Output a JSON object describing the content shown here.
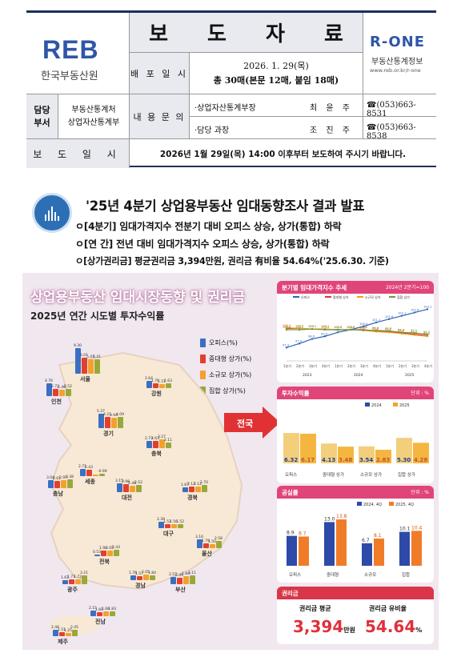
{
  "header": {
    "logo_left_mark": "REB",
    "logo_left_name": "한국부동산원",
    "title": "보 도 자 료",
    "logo_right_mark": "R-ONE",
    "logo_right_name": "부동산통계정보",
    "logo_right_url": "www.reb.or.kr/r-one",
    "distribution_label": "배 포 일 시",
    "distribution_date": "2026. 1. 29(목)",
    "distribution_pages": "총 30매(본문 12매, 붙임 18매)",
    "dept_label_1": "담당",
    "dept_label_2": "부서",
    "dept_1": "부동산통계처",
    "dept_2": "상업자산통계부",
    "contact_label": "내 용 문 의",
    "contacts": [
      {
        "role": "·상업자산통계부장",
        "name": "최 윤 주",
        "phone": "☎(053)663-8531"
      },
      {
        "role": "·담당 과장",
        "name": "조 진 주",
        "phone": "☎(053)663-8538"
      }
    ],
    "release_label": "보 도 일 시",
    "release_text": "2026년 1월 29일(목) 14:00 이후부터 보도하여 주시기 바랍니다."
  },
  "headline": {
    "title": "'25년 4분기 상업용부동산 임대동향조사 결과 발표",
    "bullets": [
      "ㅇ[4분기] 임대가격지수 전분기 대비 오피스 상승, 상가(통합) 하락",
      "ㅇ[연 간] 전년 대비 임대가격지수 오피스 상승, 상가(통합) 하락",
      "ㅇ[상가권리금] 평균권리금 3,394만원, 권리금 有비율 54.64%('25.6.30. 기준)"
    ]
  },
  "infographic": {
    "title": "상업용부동산 임대시장동향 및 권리금",
    "subtitle": "2025년 연간 시도별 투자수익률",
    "legend": [
      "오피스(%)",
      "중대형 상가(%)",
      "소규모 상가(%)",
      "집합 상가(%)"
    ],
    "colors": {
      "office": "#3a6fc2",
      "mid": "#e1402f",
      "small": "#f2a12e",
      "agg": "#9aa83a",
      "accent": "#e0457a"
    },
    "national_label": "전국",
    "regions": [
      {
        "name": "인천",
        "values": [
          "4.76",
          "2.72",
          "2.46",
          "2.52"
        ]
      },
      {
        "name": "서울",
        "values": [
          "9.30",
          "6.01",
          "5.43",
          "5.41"
        ]
      },
      {
        "name": "강원",
        "values": [
          "2.64",
          "1.76",
          "1.51",
          "1.63"
        ]
      },
      {
        "name": "경기",
        "values": [
          "5.37",
          "4.21",
          "3.94",
          "4.09"
        ]
      },
      {
        "name": "충북",
        "values": [
          "2.73",
          "2.63",
          "3.27",
          "2.11"
        ]
      },
      {
        "name": "세종",
        "values": [
          "2.71",
          "2.43",
          "",
          "-0.99"
        ]
      },
      {
        "name": "충남",
        "values": [
          "3.04",
          "2.61",
          "2.95",
          "3.38"
        ]
      },
      {
        "name": "대전",
        "values": [
          "3.15",
          "2.98",
          "2.48",
          "2.52"
        ]
      },
      {
        "name": "경북",
        "values": [
          "1.87",
          "2.12",
          "2.12",
          "2.70"
        ]
      },
      {
        "name": "대구",
        "values": [
          "2.39",
          "1.51",
          "1.56",
          "1.52"
        ]
      },
      {
        "name": "전북",
        "values": [
          "0.53",
          "1.96",
          "2.05",
          "2.43"
        ]
      },
      {
        "name": "울산",
        "values": [
          "3.16",
          "1.79",
          "1.50",
          "2.58"
        ]
      },
      {
        "name": "광주",
        "values": [
          "1.61",
          "1.77",
          "1.72",
          "3.21"
        ]
      },
      {
        "name": "경남",
        "values": [
          "1.78",
          "1.57",
          "2.05",
          "1.84"
        ]
      },
      {
        "name": "부산",
        "values": [
          "2.57",
          "2.49",
          "2.84",
          "3.11"
        ]
      },
      {
        "name": "전남",
        "values": [
          "2.15",
          "1.60",
          "1.68",
          "1.83"
        ]
      },
      {
        "name": "제주",
        "values": [
          "2.46",
          "1.51",
          "1.25",
          "2.45"
        ]
      }
    ],
    "rent_index": {
      "title": "분기별 임대가격지수 추세",
      "unit": "2024년 2분기=100",
      "series_names": [
        "오피스",
        "중대형 상가",
        "소규모 상가",
        "집합 상가"
      ],
      "x_labels": [
        "1분기",
        "2분기",
        "3분기",
        "4분기",
        "1분기",
        "2분기",
        "3분기",
        "4분기",
        "1분기",
        "2분기",
        "3분기",
        "4분기"
      ],
      "years": [
        "2023",
        "2024",
        "2025"
      ],
      "office": [
        97.3,
        97.9,
        98.6,
        99.0,
        99.6,
        100.0,
        100.5,
        101.1,
        101.6,
        102.1,
        102.6,
        103.1
      ],
      "mid": [
        100.2,
        100.2,
        100.1,
        100.1,
        100.0,
        100.0,
        100.0,
        99.8,
        99.7,
        99.5,
        99.3,
        99.1
      ],
      "small": [
        100.3,
        100.2,
        100.1,
        100.1,
        100.0,
        100.0,
        99.9,
        99.7,
        99.6,
        99.4,
        99.2,
        99.0
      ],
      "agg": [
        100.0,
        100.0,
        100.1,
        100.0,
        100.0,
        100.0,
        99.9,
        99.9,
        99.8,
        99.6,
        99.5,
        99.3
      ]
    },
    "investment": {
      "title": "투자수익률",
      "unit": "단위 : %",
      "legend": [
        "2024",
        "2025"
      ],
      "categories": [
        "오피스",
        "중대형 상가",
        "소규모 상가",
        "집합 상가"
      ],
      "y2024": [
        "6.32",
        "4.13",
        "3.54",
        "5.30"
      ],
      "y2025": [
        "6.17",
        "3.48",
        "2.83",
        "4.28"
      ]
    },
    "vacancy": {
      "title": "공실률",
      "unit": "단위 : %",
      "legend": [
        "2024. 4Q",
        "2025. 4Q"
      ],
      "categories": [
        "오피스",
        "중대형",
        "소규모",
        "집합"
      ],
      "q2024": [
        8.9,
        13.0,
        6.7,
        10.1
      ],
      "q2025": [
        8.7,
        13.8,
        8.1,
        10.4
      ],
      "q2024_labels": [
        "8.9",
        "13.0",
        "6.7",
        "10.1"
      ],
      "q2025_labels": [
        "8.7",
        "13.8",
        "8.1",
        "10.4"
      ]
    },
    "premium": {
      "title": "권리금",
      "avg_label": "권리금 평균",
      "avg_value": "3,394",
      "avg_unit": "만원",
      "ratio_label": "권리금 유비율",
      "ratio_value": "54.64",
      "ratio_unit": "%"
    }
  }
}
